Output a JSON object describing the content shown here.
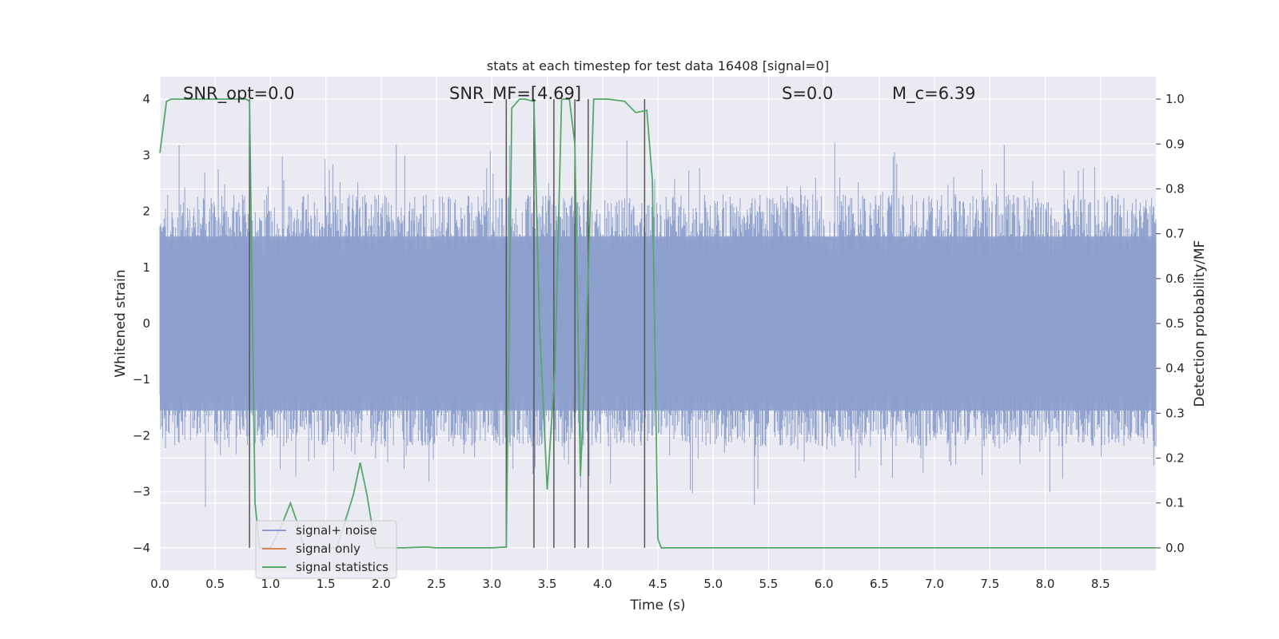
{
  "chart_data": {
    "type": "line",
    "title": "stats at each timestep for test data 16408 [signal=0]",
    "xlabel": "Time (s)",
    "ylabel_left": "Whitened strain",
    "ylabel_right": "Detection probability/MF",
    "xlim": [
      0.0,
      9.0
    ],
    "ylim_left": [
      -4.4,
      4.4
    ],
    "ylim_right": [
      -0.05,
      1.05
    ],
    "xticks": [
      "0.0",
      "0.5",
      "1.0",
      "1.5",
      "2.0",
      "2.5",
      "3.0",
      "3.5",
      "4.0",
      "4.5",
      "5.0",
      "5.5",
      "6.0",
      "6.5",
      "7.0",
      "7.5",
      "8.0",
      "8.5"
    ],
    "yticks_left": [
      "4",
      "3",
      "2",
      "1",
      "0",
      "−1",
      "−2",
      "−3",
      "−4"
    ],
    "yticks_right": [
      "1.0",
      "0.9",
      "0.8",
      "0.7",
      "0.6",
      "0.5",
      "0.4",
      "0.3",
      "0.2",
      "0.1",
      "0.0"
    ],
    "grid": true,
    "background": "#eaeaf2",
    "annotations": [
      {
        "text": "SNR_opt=0.0",
        "x": 0.2
      },
      {
        "text": "SNR_MF=[4.69]",
        "x": 2.6
      },
      {
        "text": "S=0.0",
        "x": 5.6
      },
      {
        "text": "M_c=6.39",
        "x": 6.6
      }
    ],
    "legend": {
      "position": "lower-left",
      "entries": [
        {
          "label": "signal+ noise",
          "color": "#8c9fcc"
        },
        {
          "label": "signal only",
          "color": "#dd8452"
        },
        {
          "label": "signal statistics",
          "color": "#55a868"
        }
      ]
    },
    "series": [
      {
        "name": "signal+ noise",
        "axis": "left",
        "color": "#8c9fcc",
        "note_envelope": {
          "typical_peak": 2.3,
          "typical_trough": -2.2,
          "max": 3.99,
          "min": -4.0
        },
        "x_range": [
          0.0,
          9.0
        ]
      },
      {
        "name": "signal statistics",
        "axis": "right",
        "color": "#55a868",
        "x": [
          0.0,
          0.06,
          0.1,
          0.3,
          0.5,
          0.6,
          0.7,
          0.78,
          0.81,
          0.86,
          0.9,
          1.0,
          1.1,
          1.18,
          1.25,
          1.3,
          1.4,
          1.6,
          1.75,
          1.81,
          1.87,
          1.95,
          2.2,
          2.4,
          2.5,
          3.0,
          3.13,
          3.18,
          3.25,
          3.3,
          3.38,
          3.43,
          3.5,
          3.57,
          3.63,
          3.7,
          3.75,
          3.8,
          3.85,
          3.92,
          3.97,
          4.05,
          4.2,
          4.3,
          4.4,
          4.45,
          4.5,
          4.53,
          4.6,
          9.0
        ],
        "y": [
          0.88,
          0.995,
          1.0,
          1.0,
          1.0,
          1.0,
          1.0,
          1.0,
          0.995,
          0.1,
          0.0,
          0.0,
          0.05,
          0.1,
          0.05,
          0.0,
          0.0,
          0.0,
          0.12,
          0.19,
          0.12,
          0.0,
          0.0,
          0.002,
          0.0,
          0.0,
          0.002,
          0.98,
          1.0,
          1.0,
          0.995,
          0.5,
          0.13,
          0.4,
          1.0,
          1.0,
          0.9,
          0.16,
          0.45,
          1.0,
          1.0,
          1.0,
          0.995,
          0.97,
          0.975,
          0.82,
          0.02,
          0.0,
          0.0,
          0.0
        ]
      }
    ],
    "vertical_markers": [
      0.81,
      3.13,
      3.38,
      3.56,
      3.75,
      3.87,
      4.38
    ]
  }
}
